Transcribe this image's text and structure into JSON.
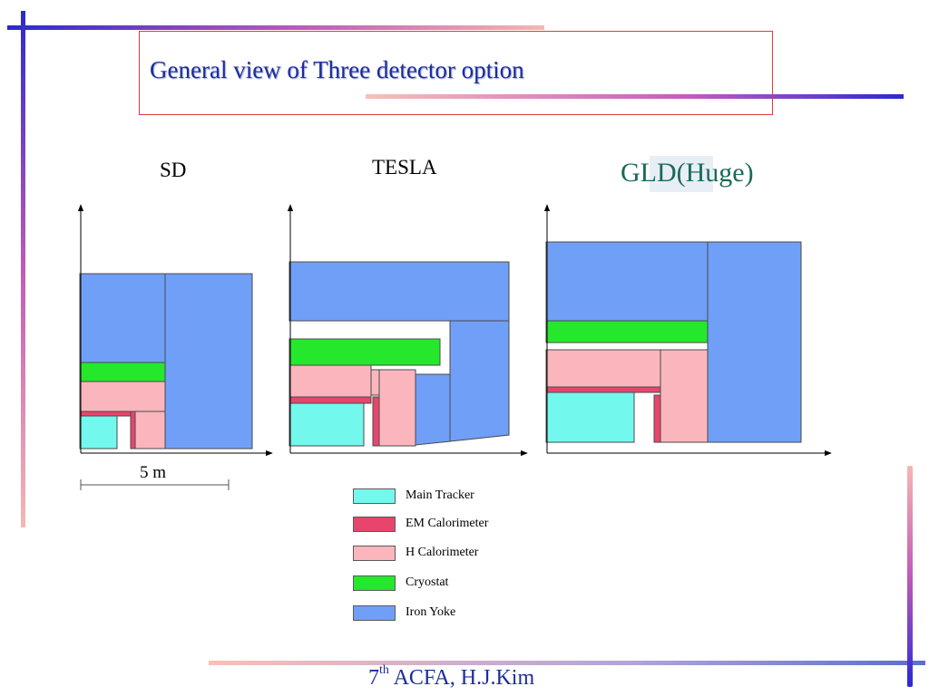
{
  "title": "General view of Three detector option",
  "columns": {
    "sd": "SD",
    "tesla": "TESLA",
    "gld": "GLD(Huge)"
  },
  "scale_bar": {
    "label": "5 m"
  },
  "colors": {
    "main_tracker": "#73f8ee",
    "em_calorimeter": "#e8456c",
    "h_calorimeter": "#fbb6bd",
    "cryostat": "#25e82c",
    "iron_yoke": "#709ff8",
    "title_text": "#1c2d9c",
    "title_border": "#e23a3a"
  },
  "legend": [
    {
      "label": "Main Tracker",
      "color": "#73f8ee"
    },
    {
      "label": "EM Calorimeter",
      "color": "#e8456c"
    },
    {
      "label": "H Calorimeter",
      "color": "#fbb6bd"
    },
    {
      "label": "Cryostat",
      "color": "#25e82c"
    },
    {
      "label": "Iron Yoke",
      "color": "#709ff8"
    }
  ],
  "footer": {
    "number": "7",
    "superscript": "th",
    "text": " ACFA, H.J.Kim"
  }
}
